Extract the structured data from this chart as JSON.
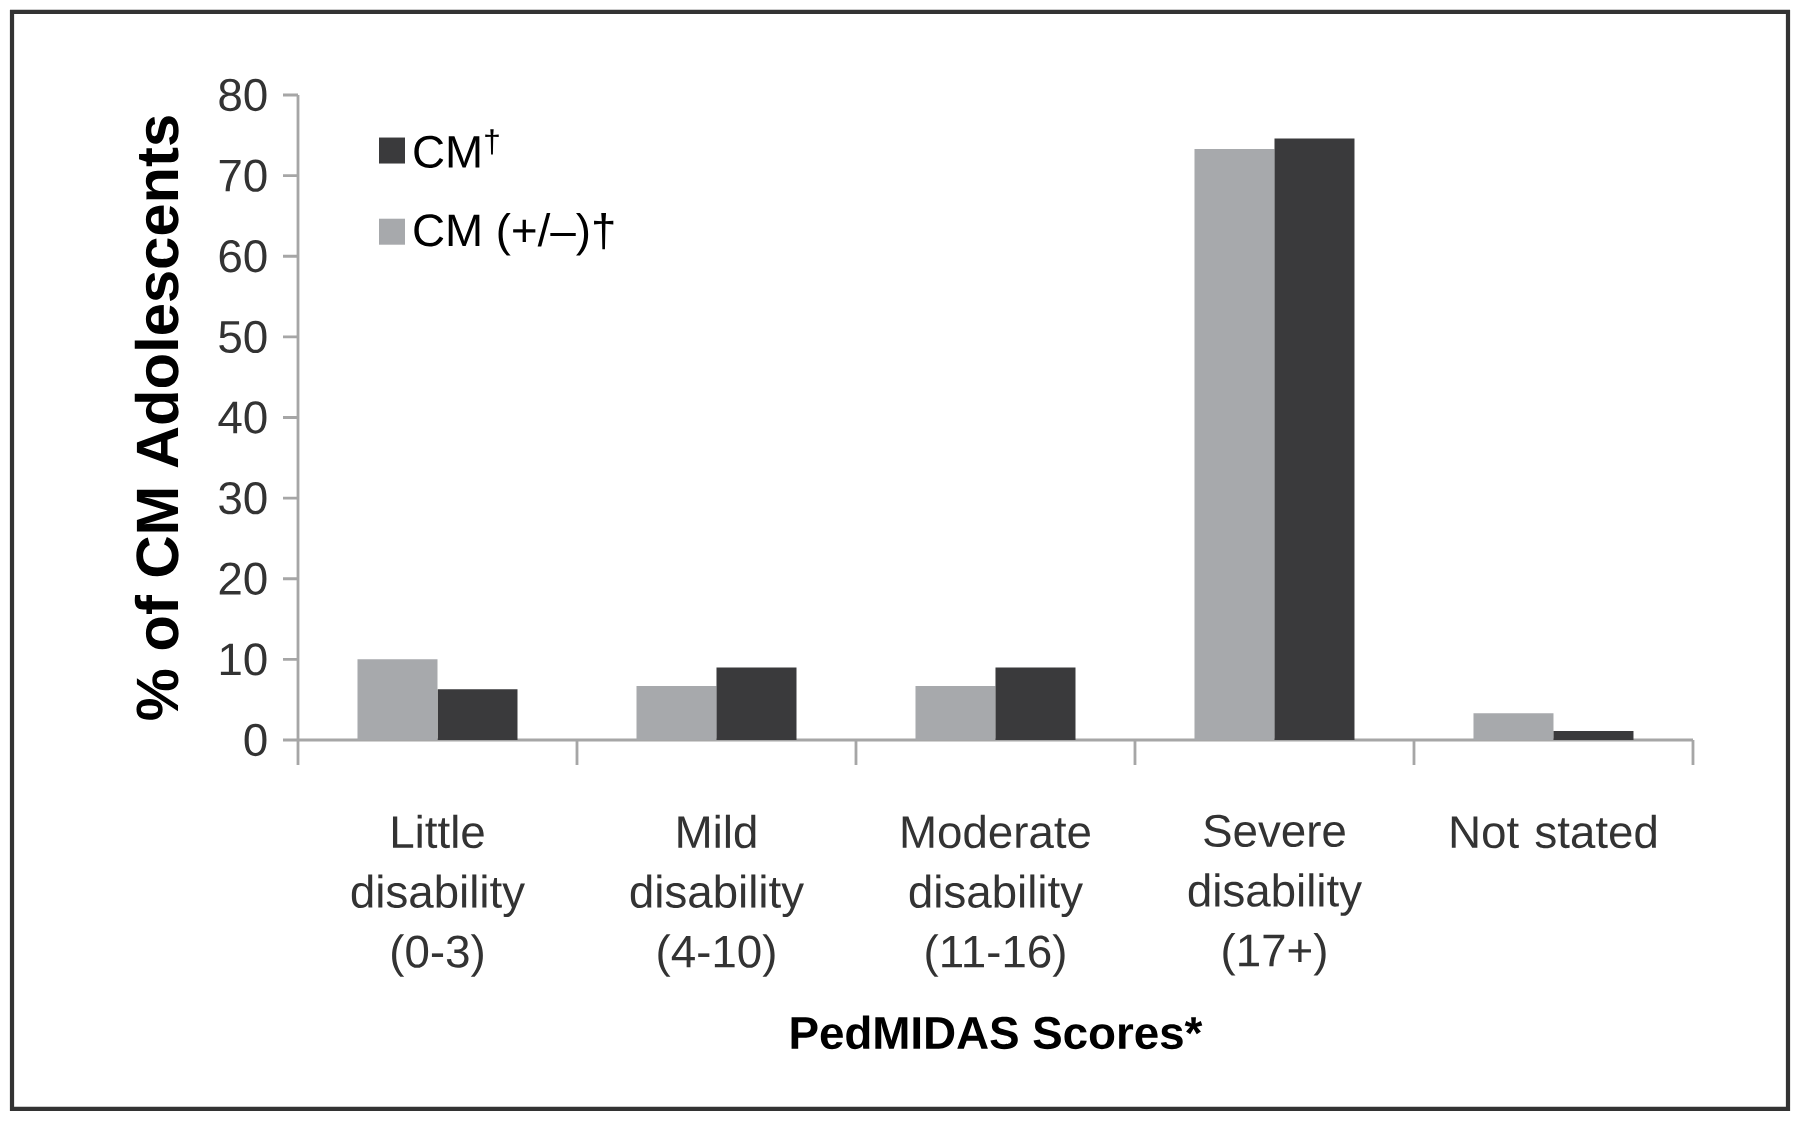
{
  "chart_data": {
    "type": "bar",
    "xlabel": "PedMIDAS Scores*",
    "ylabel": "% of CM Adolescents",
    "categories": [
      "Little disability (0-3)",
      "Mild disability (4-10)",
      "Moderate disability (11-16)",
      "Severe disability (17+)",
      "Not stated"
    ],
    "series": [
      {
        "name": "CM (+/–)†",
        "color": "#a7a9ac",
        "values": [
          10,
          6.7,
          6.7,
          73.3,
          3.3
        ]
      },
      {
        "name": "CM$^{†}$",
        "color": "#3a3a3c",
        "values": [
          6.3,
          9,
          9,
          74.6,
          1.1
        ]
      }
    ],
    "ylim": [
      0,
      80
    ],
    "yticks": [
      0,
      10,
      20,
      30,
      40,
      50,
      60,
      70,
      80
    ],
    "legend": "top left"
  }
}
